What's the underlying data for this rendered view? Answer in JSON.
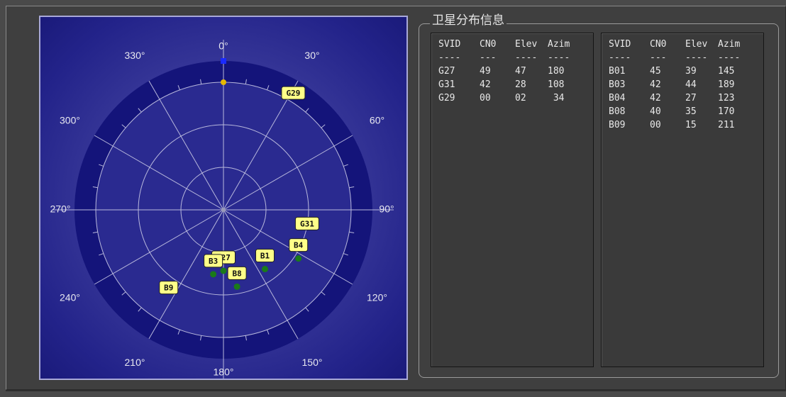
{
  "group_title": "卫星分布信息",
  "sky": {
    "direction_labels": [
      "0°",
      "30°",
      "60°",
      "90°",
      "120°",
      "150°",
      "180°",
      "210°",
      "240°",
      "270°",
      "300°",
      "330°"
    ],
    "satellites": [
      {
        "id": "G29",
        "elev": 2,
        "azim": 34,
        "dot": false
      },
      {
        "id": "G31",
        "elev": 28,
        "azim": 108,
        "dot": false
      },
      {
        "id": "B4",
        "elev": 27,
        "azim": 123,
        "dot": true
      },
      {
        "id": "B1",
        "elev": 39,
        "azim": 145,
        "dot": true
      },
      {
        "id": "G27",
        "elev": 47,
        "azim": 180,
        "dot": true
      },
      {
        "id": "B3",
        "elev": 44,
        "azim": 189,
        "dot": true
      },
      {
        "id": "B8",
        "elev": 35,
        "azim": 170,
        "dot": true
      },
      {
        "id": "B9",
        "elev": 15,
        "azim": 211,
        "dot": false
      }
    ],
    "dot_color": "#1a7a1a",
    "label_bg": "#ffff88"
  },
  "gps_table": {
    "headers": [
      "SVID",
      "CN0",
      "Elev",
      "Azim"
    ],
    "separators": [
      "----",
      "---",
      "----",
      "----"
    ],
    "rows": [
      [
        "G27",
        "49",
        "47",
        "180"
      ],
      [
        "G31",
        "42",
        "28",
        "108"
      ],
      [
        "G29",
        "00",
        "02",
        " 34"
      ]
    ]
  },
  "bds_table": {
    "headers": [
      "SVID",
      "CN0",
      "Elev",
      "Azim"
    ],
    "separators": [
      "----",
      "---",
      "----",
      "----"
    ],
    "rows": [
      [
        "B01",
        "45",
        "39",
        "145"
      ],
      [
        "B03",
        "42",
        "44",
        "189"
      ],
      [
        "B04",
        "42",
        "27",
        "123"
      ],
      [
        "B08",
        "40",
        "35",
        "170"
      ],
      [
        "B09",
        "00",
        "15",
        "211"
      ]
    ]
  }
}
